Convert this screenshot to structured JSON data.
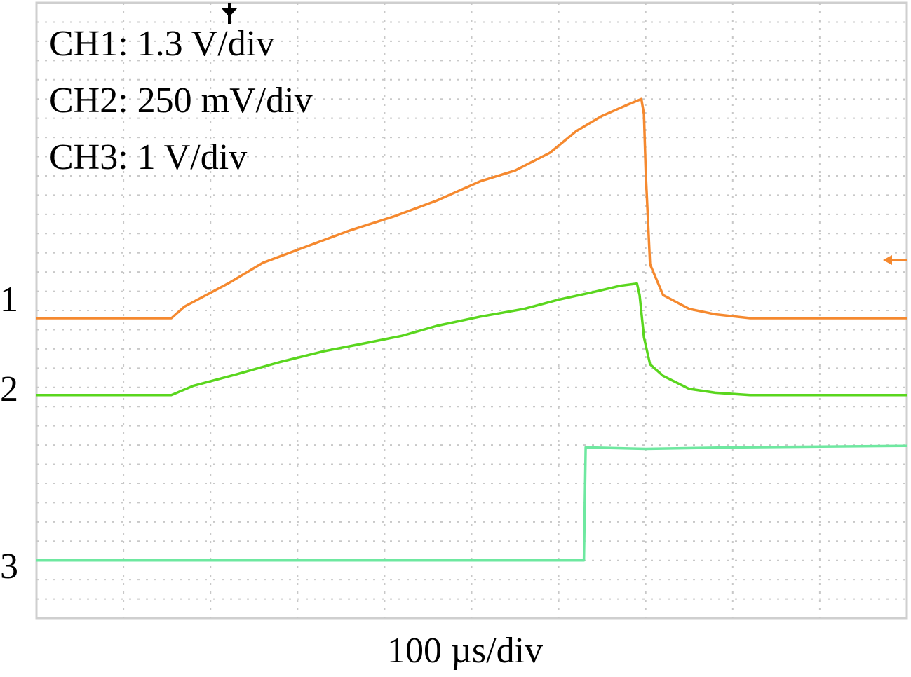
{
  "chart_data": {
    "type": "line",
    "title": "",
    "annotations": [
      "CH1: 1.3 V/div",
      "CH2: 250 mV/div",
      "CH3: 1 V/div"
    ],
    "xlabel": "100 µs/div",
    "ylabel": "",
    "x_unit": "div",
    "y_unit": "div",
    "xlim": [
      0,
      10
    ],
    "ylim": [
      -4,
      4
    ],
    "grid": true,
    "legend": "none",
    "channel_markers": [
      "1",
      "2",
      "3"
    ],
    "series": [
      {
        "marker": "1",
        "color": "#f5892f",
        "points": [
          [
            0,
            -0.1
          ],
          [
            1.55,
            -0.1
          ],
          [
            1.7,
            0.05
          ],
          [
            2.2,
            0.35
          ],
          [
            2.6,
            0.62
          ],
          [
            3.1,
            0.83
          ],
          [
            3.6,
            1.04
          ],
          [
            4.1,
            1.22
          ],
          [
            4.6,
            1.43
          ],
          [
            5.1,
            1.68
          ],
          [
            5.5,
            1.82
          ],
          [
            5.9,
            2.05
          ],
          [
            6.2,
            2.33
          ],
          [
            6.5,
            2.53
          ],
          [
            6.8,
            2.68
          ],
          [
            6.95,
            2.75
          ],
          [
            6.98,
            2.55
          ],
          [
            7.0,
            1.8
          ],
          [
            7.05,
            0.6
          ],
          [
            7.2,
            0.2
          ],
          [
            7.5,
            0.02
          ],
          [
            7.8,
            -0.05
          ],
          [
            8.2,
            -0.1
          ],
          [
            10,
            -0.1
          ]
        ]
      },
      {
        "marker": "2",
        "color": "#5ad61e",
        "points": [
          [
            0,
            -1.1
          ],
          [
            1.55,
            -1.1
          ],
          [
            1.8,
            -0.98
          ],
          [
            2.3,
            -0.83
          ],
          [
            2.8,
            -0.67
          ],
          [
            3.3,
            -0.53
          ],
          [
            3.8,
            -0.42
          ],
          [
            4.2,
            -0.33
          ],
          [
            4.6,
            -0.2
          ],
          [
            5.1,
            -0.08
          ],
          [
            5.6,
            0.02
          ],
          [
            6.0,
            0.14
          ],
          [
            6.4,
            0.24
          ],
          [
            6.7,
            0.32
          ],
          [
            6.9,
            0.35
          ],
          [
            6.93,
            0.2
          ],
          [
            6.98,
            -0.35
          ],
          [
            7.05,
            -0.7
          ],
          [
            7.2,
            -0.85
          ],
          [
            7.5,
            -1.02
          ],
          [
            7.8,
            -1.07
          ],
          [
            8.2,
            -1.1
          ],
          [
            10,
            -1.1
          ]
        ]
      },
      {
        "marker": "3",
        "color": "#6ee8a0",
        "points": [
          [
            0,
            -3.25
          ],
          [
            6.25,
            -3.25
          ],
          [
            6.29,
            -3.25
          ],
          [
            6.31,
            -1.78
          ],
          [
            7.0,
            -1.8
          ],
          [
            8.0,
            -1.78
          ],
          [
            10,
            -1.76
          ]
        ]
      }
    ]
  }
}
